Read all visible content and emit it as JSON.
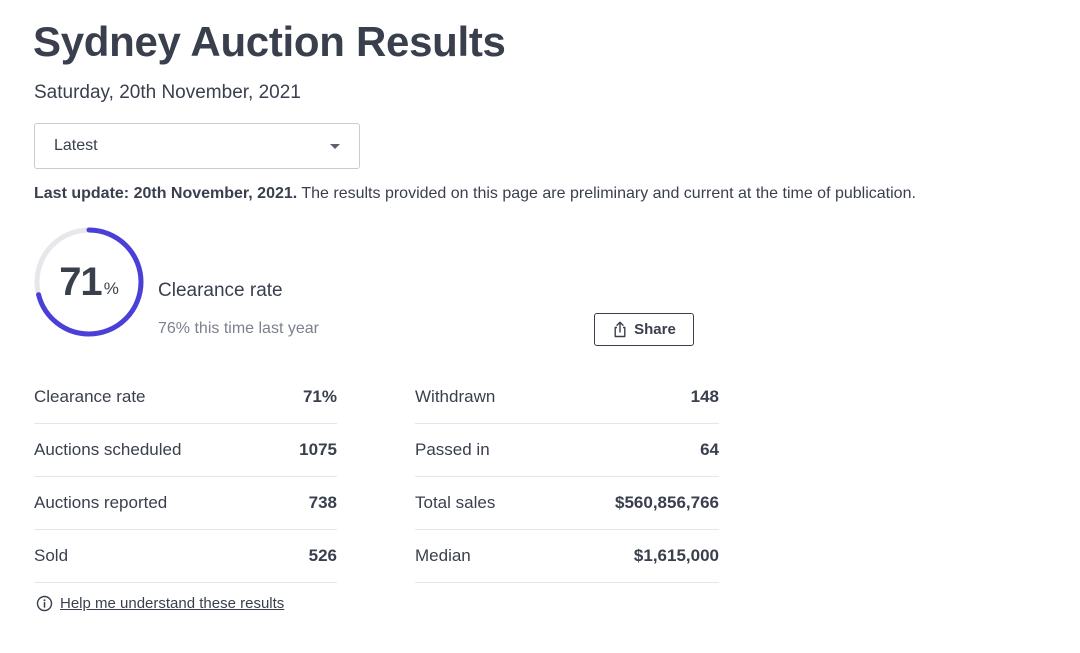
{
  "header": {
    "title": "Sydney Auction Results",
    "date": "Saturday, 20th November, 2021"
  },
  "filter": {
    "selected": "Latest",
    "icon": "chevron-down-icon"
  },
  "notice": {
    "bold": "Last update: 20th November, 2021.",
    "text": " The results provided on this page are preliminary and current at the time of publication."
  },
  "clearance": {
    "value": "71",
    "unit": "%",
    "fraction": 0.71,
    "label": "Clearance rate",
    "comparison": "76% this time last year",
    "ring_color": "#4a3fd6",
    "track_color": "#e6e7ea"
  },
  "share": {
    "label": "Share",
    "icon": "share-icon"
  },
  "stats_left": [
    {
      "label": "Clearance rate",
      "value": "71%"
    },
    {
      "label": "Auctions scheduled",
      "value": "1075"
    },
    {
      "label": "Auctions reported",
      "value": "738"
    },
    {
      "label": "Sold",
      "value": "526"
    }
  ],
  "stats_right": [
    {
      "label": "Withdrawn",
      "value": "148"
    },
    {
      "label": "Passed in",
      "value": "64"
    },
    {
      "label": "Total sales",
      "value": "$560,856,766"
    },
    {
      "label": "Median",
      "value": "$1,615,000"
    }
  ],
  "help": {
    "label": "Help me understand these results",
    "icon": "info-icon"
  }
}
